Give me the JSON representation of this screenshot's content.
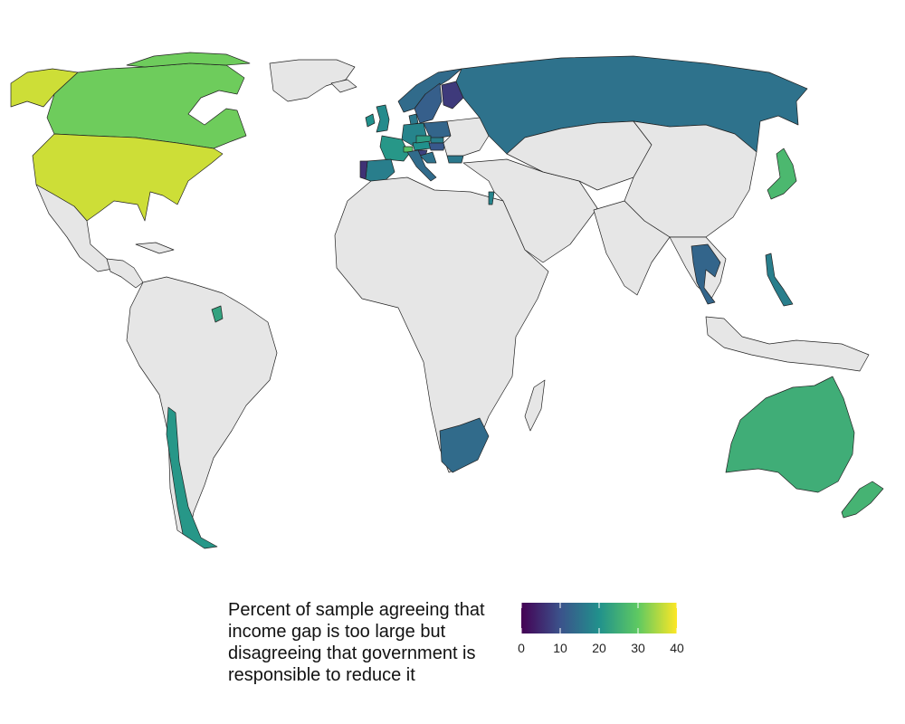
{
  "legend": {
    "title": "Percent of sample agreeing that income gap is too large but disagreeing that government is responsible to reduce it",
    "min": 0,
    "max": 40,
    "ticks": [
      {
        "value": 0,
        "label": "0"
      },
      {
        "value": 10,
        "label": "10"
      },
      {
        "value": 20,
        "label": "20"
      },
      {
        "value": 30,
        "label": "30"
      },
      {
        "value": 40,
        "label": "40"
      }
    ],
    "colormap": "viridis",
    "stops": [
      "#440154",
      "#3b528b",
      "#21918c",
      "#5ec962",
      "#fde725"
    ]
  },
  "map": {
    "no_data_color": "#e6e6e6",
    "ocean_color": "#ffffff"
  },
  "countries": [
    {
      "name": "United States",
      "value": 37
    },
    {
      "name": "Alaska",
      "value": 37
    },
    {
      "name": "Canada",
      "value": 31
    },
    {
      "name": "Greenland",
      "value": null
    },
    {
      "name": "Mexico",
      "value": null
    },
    {
      "name": "Central America",
      "value": null
    },
    {
      "name": "Cuba",
      "value": null
    },
    {
      "name": "South America",
      "value": null
    },
    {
      "name": "Suriname",
      "value": 23
    },
    {
      "name": "Chile",
      "value": 21
    },
    {
      "name": "Iceland",
      "value": null
    },
    {
      "name": "United Kingdom",
      "value": 19
    },
    {
      "name": "Ireland",
      "value": 20
    },
    {
      "name": "Norway",
      "value": 14
    },
    {
      "name": "Sweden",
      "value": 12
    },
    {
      "name": "Finland",
      "value": 7
    },
    {
      "name": "Denmark",
      "value": 16
    },
    {
      "name": "Germany",
      "value": 18
    },
    {
      "name": "Poland",
      "value": 13
    },
    {
      "name": "France",
      "value": 21
    },
    {
      "name": "Spain",
      "value": 17
    },
    {
      "name": "Portugal",
      "value": 6
    },
    {
      "name": "Italy",
      "value": 14
    },
    {
      "name": "Switzerland",
      "value": 29
    },
    {
      "name": "Austria",
      "value": 20
    },
    {
      "name": "Czechia",
      "value": 22
    },
    {
      "name": "Hungary",
      "value": 11
    },
    {
      "name": "Slovenia",
      "value": 8
    },
    {
      "name": "Slovakia",
      "value": 17
    },
    {
      "name": "Croatia",
      "value": 15
    },
    {
      "name": "Bulgaria",
      "value": 16
    },
    {
      "name": "Russia",
      "value": 15
    },
    {
      "name": "Japan",
      "value": 27
    },
    {
      "name": "Thailand",
      "value": 13
    },
    {
      "name": "Philippines",
      "value": 17
    },
    {
      "name": "Australia",
      "value": 25
    },
    {
      "name": "New Zealand",
      "value": 26
    },
    {
      "name": "South Africa",
      "value": 14
    },
    {
      "name": "Israel",
      "value": 18
    },
    {
      "name": "Africa",
      "value": null
    },
    {
      "name": "Middle East",
      "value": null
    },
    {
      "name": "Central Asia",
      "value": null
    },
    {
      "name": "China",
      "value": null
    },
    {
      "name": "India",
      "value": null
    },
    {
      "name": "Southeast Asia",
      "value": null
    },
    {
      "name": "Indonesia",
      "value": null
    },
    {
      "name": "Madagascar",
      "value": null
    },
    {
      "name": "Eastern Europe",
      "value": null
    }
  ]
}
